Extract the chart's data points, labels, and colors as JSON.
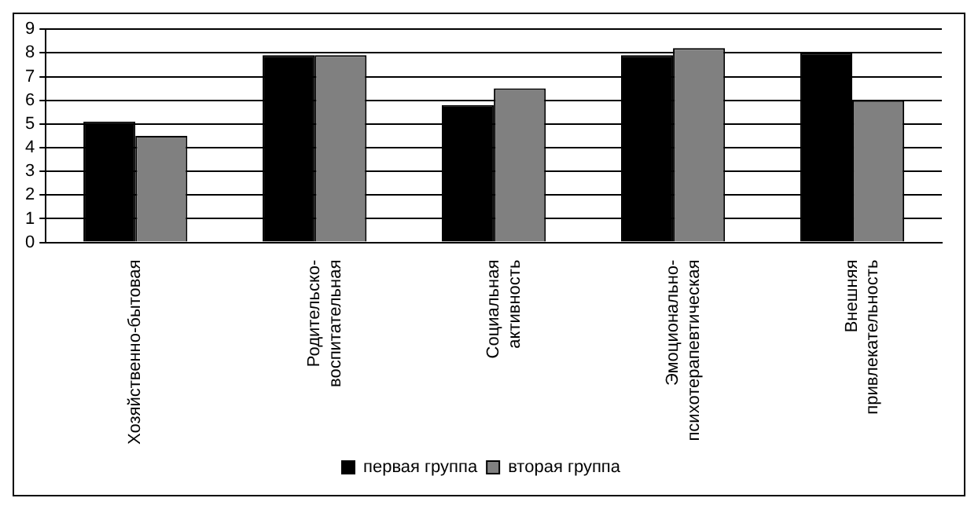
{
  "chart_data": {
    "type": "bar",
    "categories": [
      "Хозяйственно-бытовая",
      "Родительско-\nвоспитательная",
      "Социальная\nактивность",
      "Эмоционально-\nпсихотерапевтическая",
      "Внешняя\nпривлекательность"
    ],
    "series": [
      {
        "name": "первая группа",
        "color": "#000000",
        "values": [
          5.1,
          7.9,
          5.8,
          7.9,
          8.0
        ]
      },
      {
        "name": "вторая группа",
        "color": "#808080",
        "values": [
          4.5,
          7.9,
          6.5,
          8.2,
          6.0
        ]
      }
    ],
    "ylim": [
      0,
      9
    ],
    "yticks": [
      0,
      1,
      2,
      3,
      4,
      5,
      6,
      7,
      8,
      9
    ],
    "grid": "y",
    "legend": "bottom"
  }
}
